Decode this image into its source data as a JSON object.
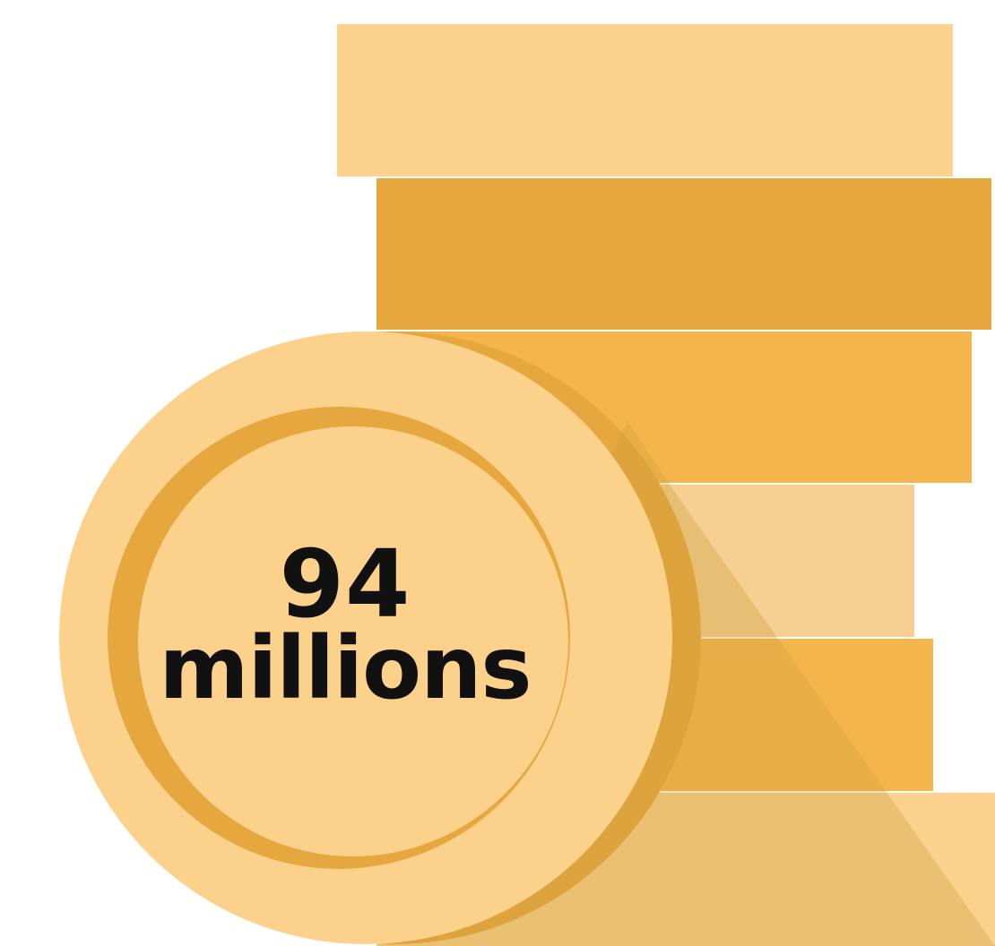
{
  "coin": {
    "number": "94",
    "unit": "millions"
  },
  "colors": {
    "coin_light": "#FBD18C",
    "coin_rim": "#E6A73F",
    "stack_light": "#FBD18C",
    "stack_dark": "#E6A73F",
    "stack_mid": "#F5B54D",
    "stack_pale": "#F6CF91",
    "shadow": "#C99A3C"
  },
  "icons": {
    "illustration": "coin-stack-icon"
  }
}
